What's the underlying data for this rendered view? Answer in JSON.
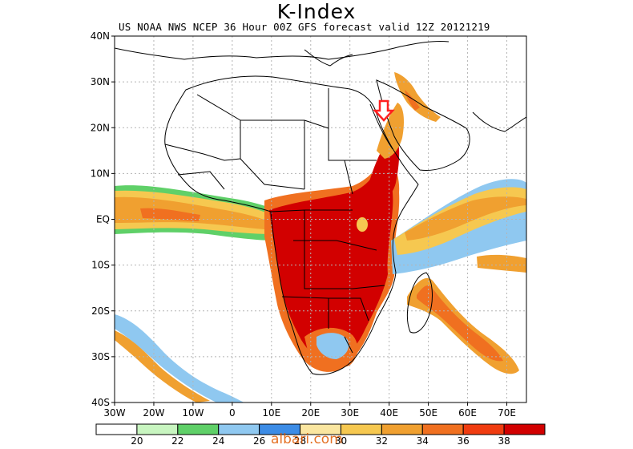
{
  "title": "K-Index",
  "subtitle": "US NOAA NWS NCEP 36 Hour 00Z GFS forecast valid 12Z 20121219",
  "lat_labels": [
    "40N",
    "30N",
    "20N",
    "10N",
    "EQ",
    "10S",
    "20S",
    "30S",
    "40S"
  ],
  "lon_labels": [
    "30W",
    "20W",
    "10W",
    "0",
    "10E",
    "20E",
    "30E",
    "40E",
    "50E",
    "60E",
    "70E"
  ],
  "legend": {
    "values": [
      "20",
      "22",
      "24",
      "26",
      "28",
      "30",
      "32",
      "34",
      "36",
      "38"
    ],
    "colors": [
      "#ffffff",
      "#c8f5c0",
      "#5fd068",
      "#8fc8f0",
      "#3c8ce6",
      "#fae6a0",
      "#f6c850",
      "#f0a030",
      "#f07020",
      "#f03c10",
      "#d20000"
    ]
  },
  "watermark": "albari.com",
  "colors": {
    "border": "#000000",
    "grid": "#b4b4b4",
    "marker": "#ff2020"
  },
  "icons": {
    "marker": "red-down-arrow-icon"
  }
}
